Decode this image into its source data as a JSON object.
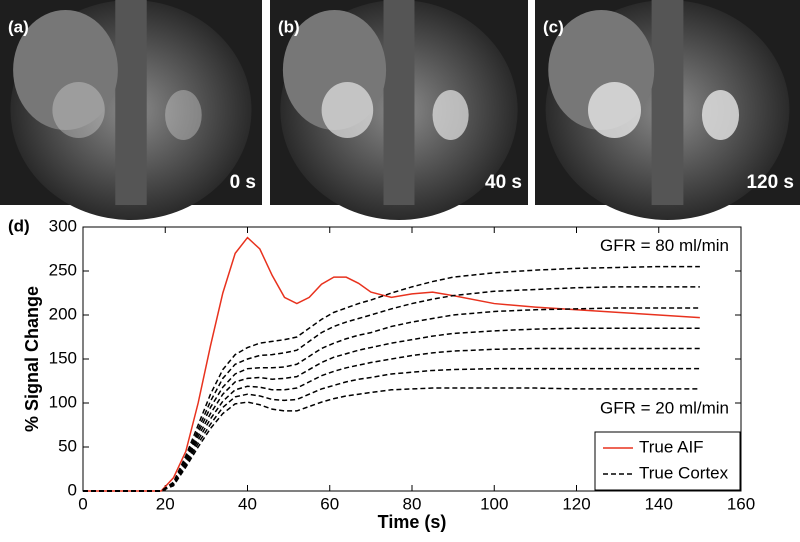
{
  "panels": [
    {
      "label": "(a)",
      "time": "0 s"
    },
    {
      "label": "(b)",
      "time": "40 s"
    },
    {
      "label": "(c)",
      "time": "120 s"
    }
  ],
  "chart_data": {
    "type": "line",
    "label": "(d)",
    "xlabel": "Time (s)",
    "ylabel": "% Signal Change",
    "x": [
      0,
      10,
      19,
      22,
      25,
      28,
      31,
      34,
      37,
      40,
      43,
      46,
      49,
      52,
      55,
      58,
      61,
      64,
      67,
      70,
      75,
      80,
      85,
      90,
      100,
      110,
      120,
      130,
      140,
      150
    ],
    "series": [
      {
        "name": "True AIF",
        "color": "#e8321e",
        "values": [
          0,
          0,
          0,
          15,
          45,
          100,
          165,
          225,
          270,
          288,
          275,
          245,
          220,
          213,
          220,
          235,
          243,
          243,
          236,
          226,
          220,
          224,
          226,
          222,
          213,
          209,
          206,
          203,
          200,
          197
        ]
      },
      {
        "name": "True Cortex",
        "color": "#000000",
        "dashed": true,
        "lines": [
          [
            0,
            0,
            0,
            10,
            40,
            75,
            110,
            138,
            155,
            163,
            168,
            170,
            172,
            175,
            185,
            195,
            203,
            208,
            213,
            217,
            225,
            232,
            238,
            243,
            248,
            251,
            253,
            254,
            255,
            255
          ],
          [
            0,
            0,
            0,
            9,
            37,
            70,
            102,
            128,
            144,
            150,
            154,
            155,
            157,
            160,
            170,
            180,
            187,
            192,
            196,
            200,
            207,
            213,
            218,
            222,
            227,
            229,
            231,
            232,
            232,
            232
          ],
          [
            0,
            0,
            0,
            8,
            35,
            66,
            95,
            118,
            133,
            139,
            140,
            140,
            141,
            144,
            153,
            162,
            168,
            173,
            177,
            180,
            187,
            192,
            196,
            200,
            204,
            206,
            207,
            208,
            208,
            208
          ],
          [
            0,
            0,
            0,
            8,
            33,
            62,
            88,
            110,
            124,
            128,
            129,
            127,
            128,
            130,
            138,
            146,
            152,
            156,
            160,
            163,
            168,
            172,
            176,
            179,
            182,
            184,
            185,
            185,
            185,
            185
          ],
          [
            0,
            0,
            0,
            7,
            31,
            58,
            82,
            102,
            115,
            119,
            118,
            115,
            115,
            117,
            124,
            131,
            136,
            140,
            143,
            146,
            150,
            154,
            157,
            159,
            161,
            162,
            162,
            162,
            162,
            162
          ],
          [
            0,
            0,
            0,
            7,
            29,
            54,
            76,
            95,
            107,
            110,
            108,
            104,
            103,
            104,
            110,
            116,
            120,
            124,
            127,
            129,
            133,
            135,
            137,
            138,
            139,
            139,
            139,
            139,
            139,
            139
          ],
          [
            0,
            0,
            0,
            6,
            27,
            50,
            71,
            88,
            99,
            101,
            98,
            93,
            91,
            91,
            96,
            101,
            105,
            108,
            110,
            112,
            115,
            116,
            117,
            117,
            117,
            117,
            116,
            116,
            116,
            116
          ]
        ]
      }
    ],
    "annotations": [
      "GFR = 80 ml/min",
      "GFR = 20 ml/min"
    ],
    "xlim": [
      0,
      160
    ],
    "xticks": [
      0,
      20,
      40,
      60,
      80,
      100,
      120,
      140,
      160
    ],
    "ylim": [
      0,
      300
    ],
    "yticks": [
      0,
      50,
      100,
      150,
      200,
      250,
      300
    ],
    "legend": "lower right"
  }
}
